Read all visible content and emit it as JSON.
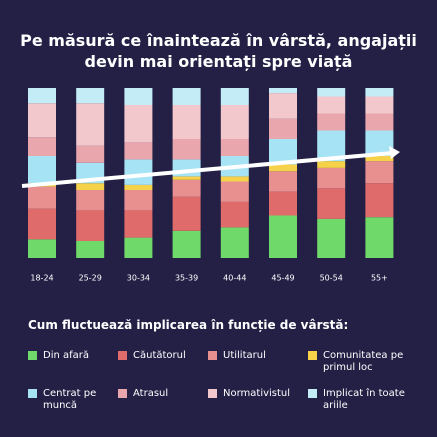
{
  "chart_data": {
    "type": "stacked_bar",
    "title": "Pe măsură ce înaintează în vârstă, angajații devin mai orientați spre viață",
    "legend_title": "Cum fluctuează implicarea în funcție de vârstă:",
    "categories": [
      "18-24",
      "25-29",
      "30-34",
      "35-39",
      "40-44",
      "45-49",
      "50-54",
      "55+"
    ],
    "ylim": [
      0,
      100
    ],
    "series": [
      {
        "name": "Din afară",
        "color": "#6fd96a",
        "values": [
          11,
          10,
          12,
          16,
          18,
          25,
          23,
          24
        ]
      },
      {
        "name": "Căutătorul",
        "color": "#e06b6b",
        "values": [
          18,
          18,
          16,
          20,
          15,
          14,
          18,
          20
        ]
      },
      {
        "name": "Utilitarul",
        "color": "#e8908f",
        "values": [
          13,
          12,
          12,
          10,
          12,
          12,
          12,
          13
        ]
      },
      {
        "name": "Comunitatea pe primul loc",
        "color": "#f5d24a",
        "values": [
          2,
          4,
          3,
          2,
          3,
          4,
          4,
          3
        ]
      },
      {
        "name": "Centrat pe muncă",
        "color": "#a6e3f5",
        "values": [
          16,
          12,
          15,
          10,
          12,
          15,
          18,
          15
        ]
      },
      {
        "name": "Atrasul",
        "color": "#e9a6ad",
        "values": [
          11,
          10,
          10,
          12,
          10,
          12,
          10,
          10
        ]
      },
      {
        "name": "Normativistul",
        "color": "#f2c8cc",
        "values": [
          20,
          25,
          22,
          20,
          20,
          15,
          10,
          10
        ]
      },
      {
        "name": "Implicat în toate ariile",
        "color": "#c3ecf7",
        "values": [
          9,
          9,
          10,
          10,
          10,
          3,
          5,
          5
        ]
      }
    ]
  }
}
